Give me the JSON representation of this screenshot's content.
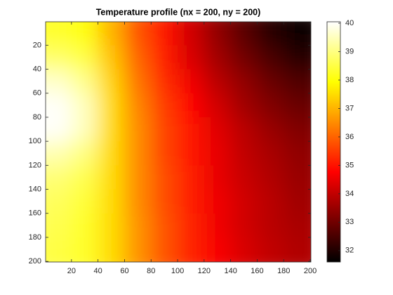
{
  "chart_data": {
    "type": "heatmap",
    "title": "Temperature profile (nx = 200, ny = 200)",
    "colormap": "hot",
    "x": [
      10,
      30,
      50,
      70,
      90,
      110,
      130,
      150,
      170,
      190
    ],
    "y": [
      10,
      30,
      50,
      70,
      90,
      110,
      130,
      150,
      170,
      190
    ],
    "z": [
      [
        38.3,
        38,
        37,
        35.8,
        35,
        34.2,
        33.4,
        32.7,
        32.1,
        31.7
      ],
      [
        38.8,
        38.5,
        37.2,
        36,
        35.1,
        34.3,
        33.6,
        33,
        32.5,
        32.1
      ],
      [
        39.6,
        39.1,
        37.4,
        36.2,
        35.3,
        34.6,
        33.9,
        33.4,
        32.9,
        32.6
      ],
      [
        40,
        39.5,
        37.5,
        36.4,
        35.5,
        34.8,
        34.2,
        33.6,
        33.2,
        32.9
      ],
      [
        40,
        39.5,
        37.5,
        36.5,
        35.6,
        35,
        34.4,
        33.9,
        33.5,
        33.2
      ],
      [
        39.4,
        39,
        37.5,
        36.5,
        35.6,
        35,
        34.5,
        34,
        33.7,
        33.4
      ],
      [
        38.9,
        38.6,
        37.5,
        36.5,
        35.7,
        35.1,
        34.5,
        34.1,
        33.8,
        33.5
      ],
      [
        38.7,
        38.4,
        37.5,
        36.5,
        35.7,
        35.1,
        34.6,
        34.2,
        33.9,
        33.6
      ],
      [
        38.6,
        38.3,
        37.5,
        36.6,
        35.8,
        35.2,
        34.6,
        34.2,
        33.9,
        33.7
      ],
      [
        38.5,
        38.3,
        37.5,
        36.6,
        35.8,
        35.2,
        34.7,
        34.3,
        34,
        33.8
      ]
    ],
    "xlim": [
      0.5,
      200.5
    ],
    "xticks": [
      20,
      40,
      60,
      80,
      100,
      120,
      140,
      160,
      180,
      200
    ],
    "ylim": [
      0.5,
      200.5
    ],
    "yticks": [
      20,
      40,
      60,
      80,
      100,
      120,
      140,
      160,
      180,
      200
    ],
    "y_reversed": true,
    "clim": [
      31.6,
      40.05
    ],
    "cticks": [
      32,
      33,
      34,
      35,
      36,
      37,
      38,
      39,
      40
    ]
  }
}
